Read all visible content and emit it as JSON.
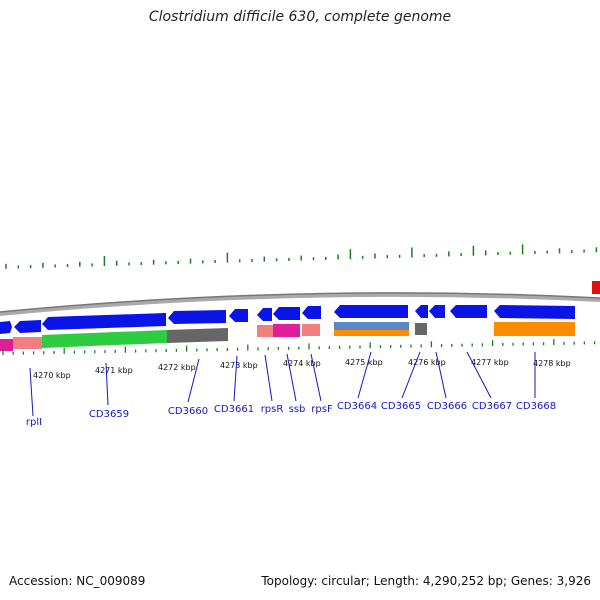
{
  "title": "Clostridium difficile 630, complete genome",
  "accession": "Accession: NC_009089",
  "summary": "Topology: circular; Length: 4,290,252 bp; Genes: 3,926",
  "colors": {
    "tick": "#1a7f1a",
    "backbone": "#888888",
    "gene": "#0a14e6",
    "label": "#1515c8",
    "ruler": "#333333"
  },
  "scale_labels": [
    "4270 kbp",
    "4271 kbp",
    "4272 kbp",
    "4273 kbp",
    "4274 kbp",
    "4275 kbp",
    "4276 kbp",
    "4277 kbp",
    "4278 kbp"
  ],
  "gene_labels": [
    "rplI",
    "CD3659",
    "CD3660",
    "CD3661",
    "rpsR",
    "ssb",
    "rpsF",
    "CD3664",
    "CD3665",
    "CD3666",
    "CD3667",
    "CD3668"
  ]
}
